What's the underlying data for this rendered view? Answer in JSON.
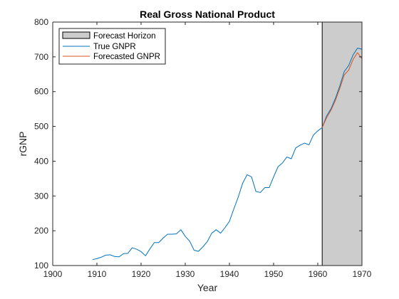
{
  "chart_data": {
    "type": "line",
    "title": "Real Gross National Product",
    "xlabel": "Year",
    "ylabel": "rGNP",
    "xlim": [
      1900,
      1970
    ],
    "ylim": [
      100,
      800
    ],
    "xticks": [
      1900,
      1910,
      1920,
      1930,
      1940,
      1950,
      1960,
      1970
    ],
    "yticks": [
      100,
      200,
      300,
      400,
      500,
      600,
      700,
      800
    ],
    "grid": false,
    "legend_position": "top-left",
    "forecast_horizon": {
      "name": "Forecast Horizon",
      "start": 1961,
      "end": 1970,
      "color": "#cccccc"
    },
    "series": [
      {
        "name": "True GNPR",
        "color": "#0072bd",
        "x": [
          1909,
          1910,
          1911,
          1912,
          1913,
          1914,
          1915,
          1916,
          1917,
          1918,
          1919,
          1920,
          1921,
          1922,
          1923,
          1924,
          1925,
          1926,
          1927,
          1928,
          1929,
          1930,
          1931,
          1932,
          1933,
          1934,
          1935,
          1936,
          1937,
          1938,
          1939,
          1940,
          1941,
          1942,
          1943,
          1944,
          1945,
          1946,
          1947,
          1948,
          1949,
          1950,
          1951,
          1952,
          1953,
          1954,
          1955,
          1956,
          1957,
          1958,
          1959,
          1960,
          1961,
          1962,
          1963,
          1964,
          1965,
          1966,
          1967,
          1968,
          1969,
          1970
        ],
        "y": [
          117,
          120,
          124,
          130,
          131,
          126,
          125,
          134,
          135,
          151,
          147,
          140,
          128,
          148,
          166,
          166,
          179,
          190,
          190,
          191,
          203,
          184,
          170,
          144,
          141,
          154,
          169,
          193,
          203,
          193,
          209,
          227,
          263,
          297,
          337,
          361,
          355,
          313,
          310,
          324,
          324,
          355,
          384,
          395,
          412,
          407,
          438,
          446,
          452,
          447,
          475,
          487,
          497,
          530,
          551,
          581,
          617,
          658,
          675,
          706,
          725,
          722
        ]
      },
      {
        "name": "Forecasted GNPR",
        "color": "#d95319",
        "x": [
          1961,
          1962,
          1963,
          1964,
          1965,
          1966,
          1967,
          1968,
          1969,
          1970
        ],
        "y": [
          497,
          525,
          547,
          575,
          610,
          648,
          662,
          693,
          712,
          695
        ]
      }
    ]
  }
}
